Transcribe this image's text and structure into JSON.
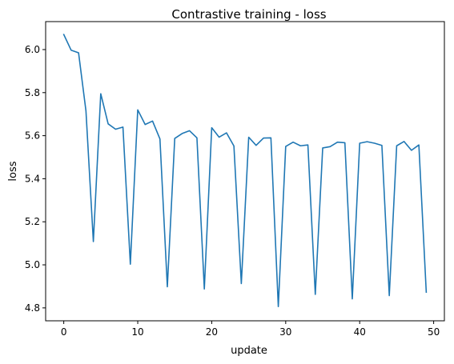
{
  "chart_data": {
    "type": "line",
    "title": "Contrastive training - loss",
    "xlabel": "update",
    "ylabel": "loss",
    "xlim": [
      -2.45,
      51.45
    ],
    "ylim": [
      4.74,
      6.13
    ],
    "grid": false,
    "legend": "none",
    "x_ticks": [
      0,
      10,
      20,
      30,
      40,
      50
    ],
    "y_ticks": [
      4.8,
      5.0,
      5.2,
      5.4,
      5.6,
      5.8,
      6.0
    ],
    "x_tick_labels": [
      "0",
      "10",
      "20",
      "30",
      "40",
      "50"
    ],
    "y_tick_labels": [
      "4.8",
      "5.0",
      "5.2",
      "5.4",
      "5.6",
      "5.8",
      "6.0"
    ],
    "series": [
      {
        "color": "#1f77b4",
        "x": [
          0,
          1,
          2,
          3,
          4,
          5,
          6,
          7,
          8,
          9,
          10,
          11,
          12,
          13,
          14,
          15,
          16,
          17,
          18,
          19,
          20,
          21,
          22,
          23,
          24,
          25,
          26,
          27,
          28,
          29,
          30,
          31,
          32,
          33,
          34,
          35,
          36,
          37,
          38,
          39,
          40,
          41,
          42,
          43,
          44,
          45,
          46,
          47,
          48,
          49
        ],
        "y": [
          6.07,
          5.997,
          5.985,
          5.715,
          5.108,
          5.795,
          5.655,
          5.63,
          5.64,
          5.003,
          5.72,
          5.652,
          5.668,
          5.585,
          4.898,
          5.587,
          5.61,
          5.623,
          5.59,
          4.888,
          5.637,
          5.593,
          5.613,
          5.552,
          4.913,
          5.593,
          5.555,
          5.589,
          5.59,
          4.806,
          5.55,
          5.57,
          5.553,
          5.557,
          4.863,
          5.543,
          5.549,
          5.57,
          5.567,
          4.842,
          5.565,
          5.572,
          5.565,
          5.555,
          4.857,
          5.553,
          5.573,
          5.532,
          5.557,
          4.873
        ]
      }
    ]
  }
}
